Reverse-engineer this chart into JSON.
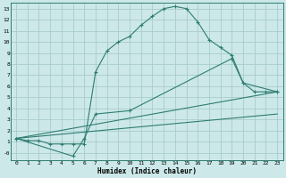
{
  "xlabel": "Humidex (Indice chaleur)",
  "bg_color": "#cce8e8",
  "grid_color": "#aacccc",
  "line_color": "#2e7d72",
  "xlim": [
    -0.5,
    23.5
  ],
  "ylim": [
    -0.7,
    13.5
  ],
  "xticks": [
    0,
    1,
    2,
    3,
    4,
    5,
    6,
    7,
    8,
    9,
    10,
    11,
    12,
    13,
    14,
    15,
    16,
    17,
    18,
    19,
    20,
    21,
    22,
    23
  ],
  "yticks": [
    0,
    1,
    2,
    3,
    4,
    5,
    6,
    7,
    8,
    9,
    10,
    11,
    12,
    13
  ],
  "ytick_labels": [
    "-0",
    "1",
    "2",
    "3",
    "4",
    "5",
    "6",
    "7",
    "8",
    "9",
    "10",
    "11",
    "12",
    "13"
  ],
  "curve1_x": [
    0,
    1,
    2,
    3,
    4,
    5,
    6,
    7,
    8,
    9,
    10,
    11,
    12,
    13,
    14,
    15,
    16,
    17,
    18,
    19,
    20,
    21,
    22,
    23
  ],
  "curve1_y": [
    1.3,
    1.1,
    1.1,
    0.8,
    0.8,
    0.8,
    0.8,
    7.3,
    9.2,
    10.0,
    10.5,
    11.5,
    12.3,
    13.0,
    13.2,
    13.0,
    11.8,
    10.2,
    9.5,
    8.8,
    6.3,
    5.5,
    5.5,
    5.5
  ],
  "line2_x": [
    0,
    23
  ],
  "line2_y": [
    1.3,
    5.5
  ],
  "line3_x": [
    0,
    23
  ],
  "line3_y": [
    1.3,
    3.5
  ],
  "line4_x": [
    0,
    5,
    6,
    7,
    10,
    19,
    20,
    23
  ],
  "line4_y": [
    1.3,
    -0.3,
    1.3,
    3.5,
    3.8,
    8.5,
    6.3,
    5.5
  ]
}
